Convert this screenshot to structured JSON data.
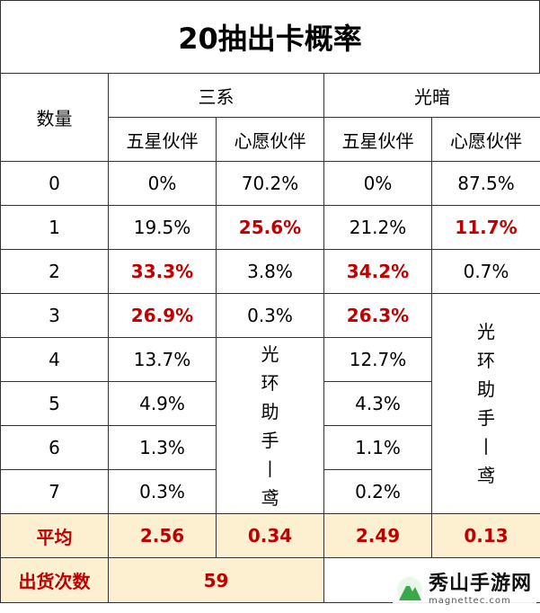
{
  "title": "20抽出卡概率",
  "headers": {
    "count": "数量",
    "group_a": "三系",
    "group_b": "光暗",
    "five_star": "五星伙伴",
    "wish": "心愿伙伴"
  },
  "rows": [
    {
      "n": "0",
      "a5": "0%",
      "aw": "70.2%",
      "b5": "0%",
      "bw": "87.5%"
    },
    {
      "n": "1",
      "a5": "19.5%",
      "aw": "25.6%",
      "b5": "21.2%",
      "bw": "11.7%"
    },
    {
      "n": "2",
      "a5": "33.3%",
      "aw": "3.8%",
      "b5": "34.2%",
      "bw": "0.7%"
    },
    {
      "n": "3",
      "a5": "26.9%",
      "aw": "0.3%",
      "b5": "26.3%"
    },
    {
      "n": "4",
      "a5": "13.7%",
      "b5": "12.7%"
    },
    {
      "n": "5",
      "a5": "4.9%",
      "b5": "4.3%"
    },
    {
      "n": "6",
      "a5": "1.3%",
      "b5": "1.1%"
    },
    {
      "n": "7",
      "a5": "0.3%",
      "b5": "0.2%"
    }
  ],
  "merged_note_a": "光环助手丨鸢",
  "merged_note_b": "光环助手丨鸢",
  "average": {
    "label": "平均",
    "a5": "2.56",
    "aw": "0.34",
    "b5": "2.49",
    "bw": "0.13"
  },
  "shipments": {
    "label": "出货次数",
    "value": "59"
  },
  "watermark": {
    "name": "秀山手游网",
    "site": "magnettec.com"
  },
  "colors": {
    "highlight_red": "#c00000",
    "footer_bg": "#fdf0d0",
    "logo_green": "#3aa84a"
  }
}
